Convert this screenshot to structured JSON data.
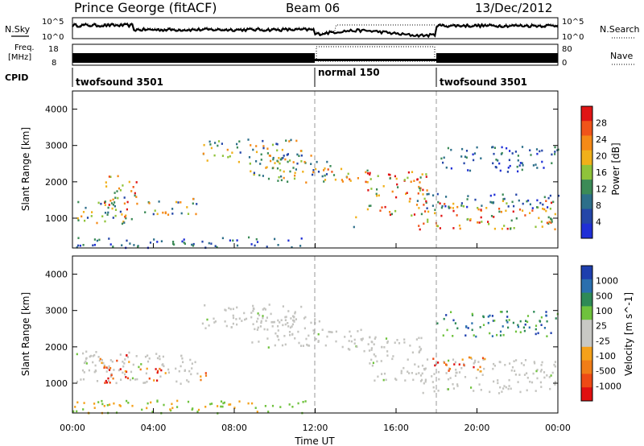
{
  "header": {
    "station": "Prince George (fitACF)",
    "beam": "Beam 06",
    "date": "13/Dec/2012"
  },
  "summary_panels": {
    "nsky_label": "N.Sky",
    "nsky_ticks": [
      "10^5",
      "10^0"
    ],
    "nsearch_label": "N.Search",
    "nsearch_ticks": [
      "10^5",
      "10^0"
    ],
    "freq_label_line1": "Freq.",
    "freq_label_line2": "[MHz]",
    "freq_ticks": [
      "18",
      "8"
    ],
    "nave_label": "Nave",
    "nave_ticks": [
      "80",
      "0"
    ],
    "cpid_label": "CPID",
    "cpid_segments": [
      {
        "name": "twofsound 3501",
        "start_hour": 0,
        "end_hour": 12
      },
      {
        "name": "normal 150",
        "start_hour": 12,
        "end_hour": 18
      },
      {
        "name": "twofsound 3501",
        "start_hour": 18,
        "end_hour": 24
      }
    ],
    "freq_cap_value": 1.0
  },
  "colors": {
    "power_scale": [
      "#1f2fd6",
      "#2446a8",
      "#2d6f8a",
      "#3c8b57",
      "#8fc33a",
      "#f0b01a",
      "#f58a17",
      "#f0541a",
      "#e01515"
    ],
    "velocity_scale": [
      "#1e3fae",
      "#2a6fae",
      "#2e8a56",
      "#6fc23d",
      "#c8c8c4",
      "#c8c8c4",
      "#f5a11a",
      "#f07d18",
      "#ee4a15",
      "#e01010"
    ],
    "ground_scatter": "#c4c4c0"
  },
  "chart_data": [
    {
      "type": "heatmap",
      "name": "power",
      "x_label": "Time UT",
      "y_label": "Slant Range [km]",
      "colorbar_label": "Power [dB]",
      "colorbar_ticks": [
        "4",
        "8",
        "12",
        "16",
        "20",
        "24",
        "28"
      ],
      "colorbar_range": [
        0,
        32
      ],
      "x_range_hours": [
        0,
        24
      ],
      "y_range_km": [
        180,
        4500
      ],
      "y_ticks": [
        "1000",
        "2000",
        "3000",
        "4000"
      ],
      "x_ticks": [
        "00:00",
        "04:00",
        "08:00",
        "12:00",
        "16:00",
        "20:00",
        "00:00"
      ],
      "echo_regions": [
        {
          "t0": 0.1,
          "t1": 2.7,
          "r0": 850,
          "r1": 1600,
          "level": "mid"
        },
        {
          "t0": 1.5,
          "t1": 3.2,
          "r0": 1000,
          "r1": 2200,
          "level": "high"
        },
        {
          "t0": 3.3,
          "t1": 5.8,
          "r0": 1050,
          "r1": 1500,
          "level": "mid"
        },
        {
          "t0": 5.8,
          "t1": 6.3,
          "r0": 1050,
          "r1": 1600,
          "level": "mid"
        },
        {
          "t0": 6.4,
          "t1": 11.5,
          "r0": 2500,
          "r1": 3200,
          "level": "mid"
        },
        {
          "t0": 8.7,
          "t1": 12.6,
          "r0": 2000,
          "r1": 2900,
          "level": "mid"
        },
        {
          "t0": 12.3,
          "t1": 14.8,
          "r0": 1900,
          "r1": 2500,
          "level": "high"
        },
        {
          "t0": 14.5,
          "t1": 17.5,
          "r0": 1100,
          "r1": 2300,
          "level": "high"
        },
        {
          "t0": 17.0,
          "t1": 24.0,
          "r0": 700,
          "r1": 1500,
          "level": "high"
        },
        {
          "t0": 17.0,
          "t1": 24.0,
          "r0": 1300,
          "r1": 1700,
          "level": "low"
        },
        {
          "t0": 18.0,
          "t1": 24.0,
          "r0": 2300,
          "r1": 3000,
          "level": "low"
        },
        {
          "t0": 13.8,
          "t1": 14.2,
          "r0": 750,
          "r1": 1100,
          "level": "mid"
        },
        {
          "t0": 0.0,
          "t1": 11.5,
          "r0": 200,
          "r1": 500,
          "level": "low"
        }
      ]
    },
    {
      "type": "heatmap",
      "name": "velocity",
      "x_label": "Time UT",
      "y_label": "Slant Range [km]",
      "colorbar_label": "Velocity [m s^-1]",
      "colorbar_ticks": [
        "1000",
        "500",
        "100",
        "25",
        "-25",
        "-100",
        "-500",
        "-1000"
      ],
      "x_range_hours": [
        0,
        24
      ],
      "y_range_km": [
        180,
        4500
      ],
      "y_ticks": [
        "1000",
        "2000",
        "3000",
        "4000"
      ],
      "x_ticks": [
        "00:00",
        "04:00",
        "08:00",
        "12:00",
        "16:00",
        "20:00",
        "00:00"
      ],
      "echo_regions": [
        {
          "t0": 0.1,
          "t1": 6.2,
          "r0": 1000,
          "r1": 1900,
          "kind": "ground"
        },
        {
          "t0": 6.4,
          "t1": 11.5,
          "r0": 2500,
          "r1": 3200,
          "kind": "ground"
        },
        {
          "t0": 8.7,
          "t1": 12.6,
          "r0": 2000,
          "r1": 2900,
          "kind": "ground"
        },
        {
          "t0": 12.3,
          "t1": 14.8,
          "r0": 1900,
          "r1": 2500,
          "kind": "ground"
        },
        {
          "t0": 14.5,
          "t1": 17.5,
          "r0": 1100,
          "r1": 2300,
          "kind": "ground"
        },
        {
          "t0": 17.0,
          "t1": 24.0,
          "r0": 750,
          "r1": 1700,
          "kind": "ground"
        },
        {
          "t0": 1.2,
          "t1": 2.8,
          "r0": 1000,
          "r1": 1800,
          "kind": "negative"
        },
        {
          "t0": 3.3,
          "t1": 5.0,
          "r0": 1100,
          "r1": 1450,
          "kind": "negative"
        },
        {
          "t0": 6.0,
          "t1": 6.6,
          "r0": 1100,
          "r1": 1500,
          "kind": "negative"
        },
        {
          "t0": 17.8,
          "t1": 20.5,
          "r0": 1350,
          "r1": 1750,
          "kind": "negative"
        },
        {
          "t0": 18.0,
          "t1": 24.0,
          "r0": 2300,
          "r1": 3000,
          "kind": "positive"
        },
        {
          "t0": 0.0,
          "t1": 11.5,
          "r0": 200,
          "r1": 550,
          "kind": "positive_low"
        }
      ]
    }
  ]
}
